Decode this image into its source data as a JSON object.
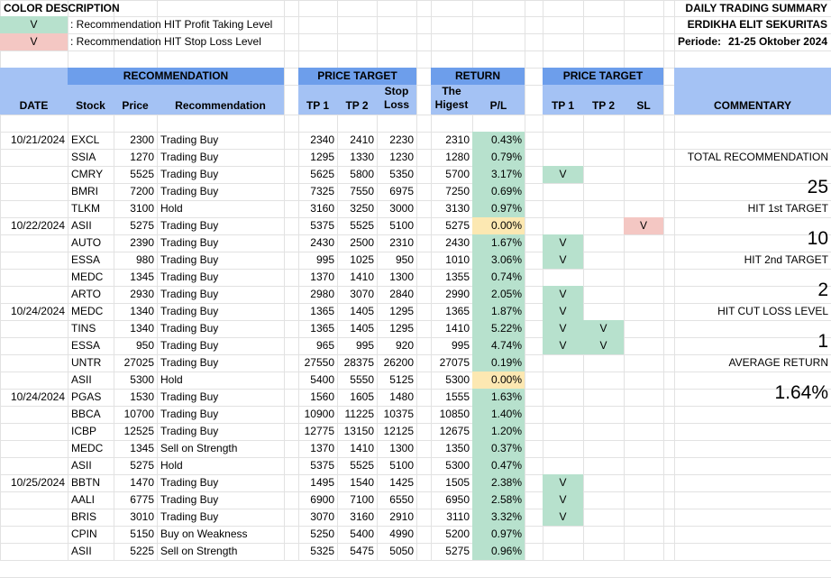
{
  "colors": {
    "header_light": "#a4c2f4",
    "header_dark": "#6d9eeb",
    "hit_profit": "#b7e1cd",
    "hit_stop": "#f4c7c3",
    "zero_return": "#fce8b2"
  },
  "legend": {
    "title": "COLOR DESCRIPTION",
    "items": [
      {
        "mark": "V",
        "label": ": Recommendation HIT Profit Taking Level",
        "color": "green"
      },
      {
        "mark": "V",
        "label": ": Recommendation HIT Stop Loss Level",
        "color": "red"
      }
    ]
  },
  "report": {
    "title": "DAILY TRADING SUMMARY",
    "company": "ERDIKHA ELIT SEKURITAS",
    "period_label": "Periode:",
    "period_value": "21-25 Oktober 2024"
  },
  "headers": {
    "date": "DATE",
    "recommendation_group": "RECOMMENDATION",
    "stock": "Stock",
    "price": "Price",
    "recommendation": "Recommendation",
    "price_target_group": "PRICE TARGET",
    "tp1": "TP 1",
    "tp2": "TP 2",
    "stop_loss_1": "Stop",
    "stop_loss_2": "Loss",
    "return_group": "RETURN",
    "highest_1": "The",
    "highest_2": "Higest",
    "pl": "P/L",
    "price_target_group_2": "PRICE TARGET",
    "hit_tp1": "TP 1",
    "hit_tp2": "TP 2",
    "hit_sl": "SL",
    "commentary": "COMMENTARY"
  },
  "rows": [
    {
      "date": "10/21/2024",
      "stock": "EXCL",
      "price": "2300",
      "rec": "Trading Buy",
      "tp1": "2340",
      "tp2": "2410",
      "sl": "2230",
      "high": "2310",
      "pl": "0.43%",
      "pl_color": "green",
      "h1": "",
      "h2": "",
      "hs": ""
    },
    {
      "date": "",
      "stock": "SSIA",
      "price": "1270",
      "rec": "Trading Buy",
      "tp1": "1295",
      "tp2": "1330",
      "sl": "1230",
      "high": "1280",
      "pl": "0.79%",
      "pl_color": "green",
      "h1": "",
      "h2": "",
      "hs": ""
    },
    {
      "date": "",
      "stock": "CMRY",
      "price": "5525",
      "rec": "Trading Buy",
      "tp1": "5625",
      "tp2": "5800",
      "sl": "5350",
      "high": "5700",
      "pl": "3.17%",
      "pl_color": "green",
      "h1": "V",
      "h2": "",
      "hs": ""
    },
    {
      "date": "",
      "stock": "BMRI",
      "price": "7200",
      "rec": "Trading Buy",
      "tp1": "7325",
      "tp2": "7550",
      "sl": "6975",
      "high": "7250",
      "pl": "0.69%",
      "pl_color": "green",
      "h1": "",
      "h2": "",
      "hs": ""
    },
    {
      "date": "",
      "stock": "TLKM",
      "price": "3100",
      "rec": "Hold",
      "tp1": "3160",
      "tp2": "3250",
      "sl": "3000",
      "high": "3130",
      "pl": "0.97%",
      "pl_color": "green",
      "h1": "",
      "h2": "",
      "hs": ""
    },
    {
      "date": "10/22/2024",
      "stock": "ASII",
      "price": "5275",
      "rec": "Trading Buy",
      "tp1": "5375",
      "tp2": "5525",
      "sl": "5100",
      "high": "5275",
      "pl": "0.00%",
      "pl_color": "orange",
      "h1": "",
      "h2": "",
      "hs": "V"
    },
    {
      "date": "",
      "stock": "AUTO",
      "price": "2390",
      "rec": "Trading Buy",
      "tp1": "2430",
      "tp2": "2500",
      "sl": "2310",
      "high": "2430",
      "pl": "1.67%",
      "pl_color": "green",
      "h1": "V",
      "h2": "",
      "hs": ""
    },
    {
      "date": "",
      "stock": "ESSA",
      "price": "980",
      "rec": "Trading Buy",
      "tp1": "995",
      "tp2": "1025",
      "sl": "950",
      "high": "1010",
      "pl": "3.06%",
      "pl_color": "green",
      "h1": "V",
      "h2": "",
      "hs": ""
    },
    {
      "date": "",
      "stock": "MEDC",
      "price": "1345",
      "rec": "Trading Buy",
      "tp1": "1370",
      "tp2": "1410",
      "sl": "1300",
      "high": "1355",
      "pl": "0.74%",
      "pl_color": "green",
      "h1": "",
      "h2": "",
      "hs": ""
    },
    {
      "date": "",
      "stock": "ARTO",
      "price": "2930",
      "rec": "Trading Buy",
      "tp1": "2980",
      "tp2": "3070",
      "sl": "2840",
      "high": "2990",
      "pl": "2.05%",
      "pl_color": "green",
      "h1": "V",
      "h2": "",
      "hs": ""
    },
    {
      "date": "10/24/2024",
      "stock": "MEDC",
      "price": "1340",
      "rec": "Trading Buy",
      "tp1": "1365",
      "tp2": "1405",
      "sl": "1295",
      "high": "1365",
      "pl": "1.87%",
      "pl_color": "green",
      "h1": "V",
      "h2": "",
      "hs": ""
    },
    {
      "date": "",
      "stock": "TINS",
      "price": "1340",
      "rec": "Trading Buy",
      "tp1": "1365",
      "tp2": "1405",
      "sl": "1295",
      "high": "1410",
      "pl": "5.22%",
      "pl_color": "green",
      "h1": "V",
      "h2": "V",
      "hs": ""
    },
    {
      "date": "",
      "stock": "ESSA",
      "price": "950",
      "rec": "Trading Buy",
      "tp1": "965",
      "tp2": "995",
      "sl": "920",
      "high": "995",
      "pl": "4.74%",
      "pl_color": "green",
      "h1": "V",
      "h2": "V",
      "hs": ""
    },
    {
      "date": "",
      "stock": "UNTR",
      "price": "27025",
      "rec": "Trading Buy",
      "tp1": "27550",
      "tp2": "28375",
      "sl": "26200",
      "high": "27075",
      "pl": "0.19%",
      "pl_color": "green",
      "h1": "",
      "h2": "",
      "hs": ""
    },
    {
      "date": "",
      "stock": "ASII",
      "price": "5300",
      "rec": "Hold",
      "tp1": "5400",
      "tp2": "5550",
      "sl": "5125",
      "high": "5300",
      "pl": "0.00%",
      "pl_color": "orange",
      "h1": "",
      "h2": "",
      "hs": ""
    },
    {
      "date": "10/24/2024",
      "stock": "PGAS",
      "price": "1530",
      "rec": "Trading Buy",
      "tp1": "1560",
      "tp2": "1605",
      "sl": "1480",
      "high": "1555",
      "pl": "1.63%",
      "pl_color": "green",
      "h1": "",
      "h2": "",
      "hs": ""
    },
    {
      "date": "",
      "stock": "BBCA",
      "price": "10700",
      "rec": "Trading Buy",
      "tp1": "10900",
      "tp2": "11225",
      "sl": "10375",
      "high": "10850",
      "pl": "1.40%",
      "pl_color": "green",
      "h1": "",
      "h2": "",
      "hs": ""
    },
    {
      "date": "",
      "stock": "ICBP",
      "price": "12525",
      "rec": "Trading Buy",
      "tp1": "12775",
      "tp2": "13150",
      "sl": "12125",
      "high": "12675",
      "pl": "1.20%",
      "pl_color": "green",
      "h1": "",
      "h2": "",
      "hs": ""
    },
    {
      "date": "",
      "stock": "MEDC",
      "price": "1345",
      "rec": "Sell on Strength",
      "tp1": "1370",
      "tp2": "1410",
      "sl": "1300",
      "high": "1350",
      "pl": "0.37%",
      "pl_color": "green",
      "h1": "",
      "h2": "",
      "hs": ""
    },
    {
      "date": "",
      "stock": "ASII",
      "price": "5275",
      "rec": "Hold",
      "tp1": "5375",
      "tp2": "5525",
      "sl": "5100",
      "high": "5300",
      "pl": "0.47%",
      "pl_color": "green",
      "h1": "",
      "h2": "",
      "hs": ""
    },
    {
      "date": "10/25/2024",
      "stock": "BBTN",
      "price": "1470",
      "rec": "Trading Buy",
      "tp1": "1495",
      "tp2": "1540",
      "sl": "1425",
      "high": "1505",
      "pl": "2.38%",
      "pl_color": "green",
      "h1": "V",
      "h2": "",
      "hs": ""
    },
    {
      "date": "",
      "stock": "AALI",
      "price": "6775",
      "rec": "Trading Buy",
      "tp1": "6900",
      "tp2": "7100",
      "sl": "6550",
      "high": "6950",
      "pl": "2.58%",
      "pl_color": "green",
      "h1": "V",
      "h2": "",
      "hs": ""
    },
    {
      "date": "",
      "stock": "BRIS",
      "price": "3010",
      "rec": "Trading Buy",
      "tp1": "3070",
      "tp2": "3160",
      "sl": "2910",
      "high": "3110",
      "pl": "3.32%",
      "pl_color": "green",
      "h1": "V",
      "h2": "",
      "hs": ""
    },
    {
      "date": "",
      "stock": "CPIN",
      "price": "5150",
      "rec": "Buy on Weakness",
      "tp1": "5250",
      "tp2": "5400",
      "sl": "4990",
      "high": "5200",
      "pl": "0.97%",
      "pl_color": "green",
      "h1": "",
      "h2": "",
      "hs": ""
    },
    {
      "date": "",
      "stock": "ASII",
      "price": "5225",
      "rec": "Sell on Strength",
      "tp1": "5325",
      "tp2": "5475",
      "sl": "5050",
      "high": "5275",
      "pl": "0.96%",
      "pl_color": "green",
      "h1": "",
      "h2": "",
      "hs": ""
    }
  ],
  "commentary": {
    "total_label": "TOTAL RECOMMENDATION",
    "total_value": "25",
    "hit1_label": "HIT 1st TARGET",
    "hit1_value": "10",
    "hit2_label": "HIT 2nd TARGET",
    "hit2_value": "2",
    "cut_label": "HIT CUT LOSS LEVEL",
    "cut_value": "1",
    "avg_label": "AVERAGE RETURN",
    "avg_value": "1.64%"
  }
}
